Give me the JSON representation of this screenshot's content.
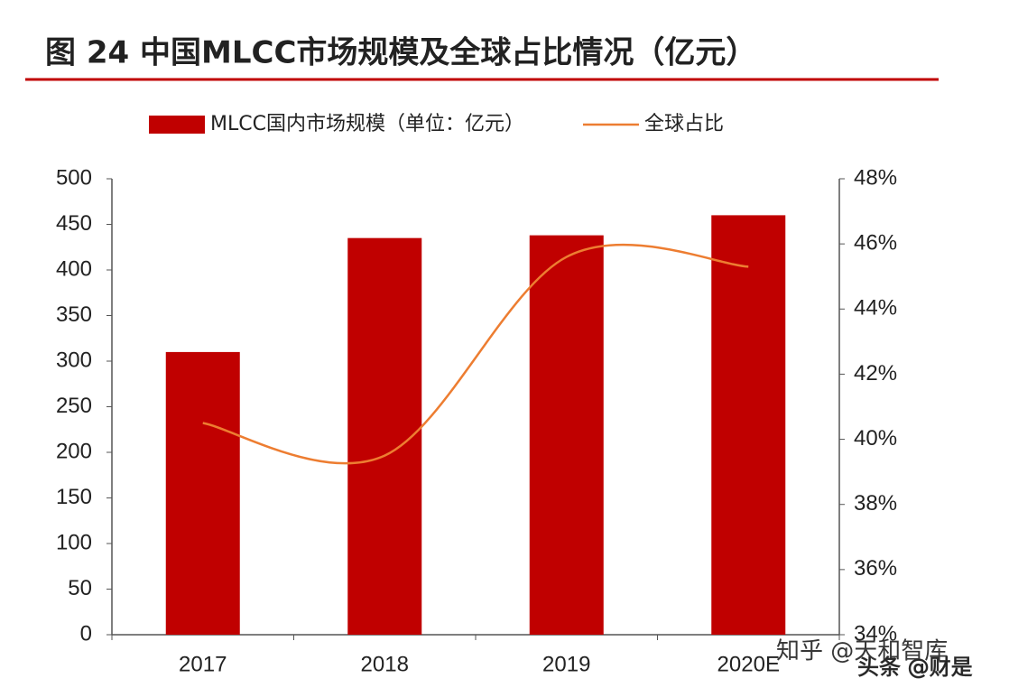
{
  "chart_data": {
    "type": "bar_line",
    "title": "图 24 中国MLCC市场规模及全球占比情况（亿元）",
    "categories": [
      "2017",
      "2018",
      "2019",
      "2020E"
    ],
    "series": [
      {
        "name": "MLCC国内市场规模（单位：亿元）",
        "color": "#c00000",
        "type": "bar",
        "values": [
          310,
          435,
          438,
          460
        ]
      },
      {
        "name": "全球占比",
        "color": "#ed7d31",
        "type": "line",
        "axis": "y2",
        "values": [
          40.5,
          39.5,
          45.6,
          45.3
        ]
      }
    ],
    "ylim": [
      0,
      500
    ],
    "yticks": [
      0,
      50,
      100,
      150,
      200,
      250,
      300,
      350,
      400,
      450,
      500
    ],
    "y2lim": [
      34,
      48
    ],
    "y2ticks": [
      {
        "value": 34,
        "label": "34%"
      },
      {
        "value": 36,
        "label": "36%"
      },
      {
        "value": 38,
        "label": "38%"
      },
      {
        "value": 40,
        "label": "40%"
      },
      {
        "value": 42,
        "label": "42%"
      },
      {
        "value": 44,
        "label": "44%"
      },
      {
        "value": 46,
        "label": "46%"
      },
      {
        "value": 48,
        "label": "48%"
      }
    ],
    "watermarks": [
      "知乎 @天和智库",
      "头条 @财是"
    ]
  }
}
